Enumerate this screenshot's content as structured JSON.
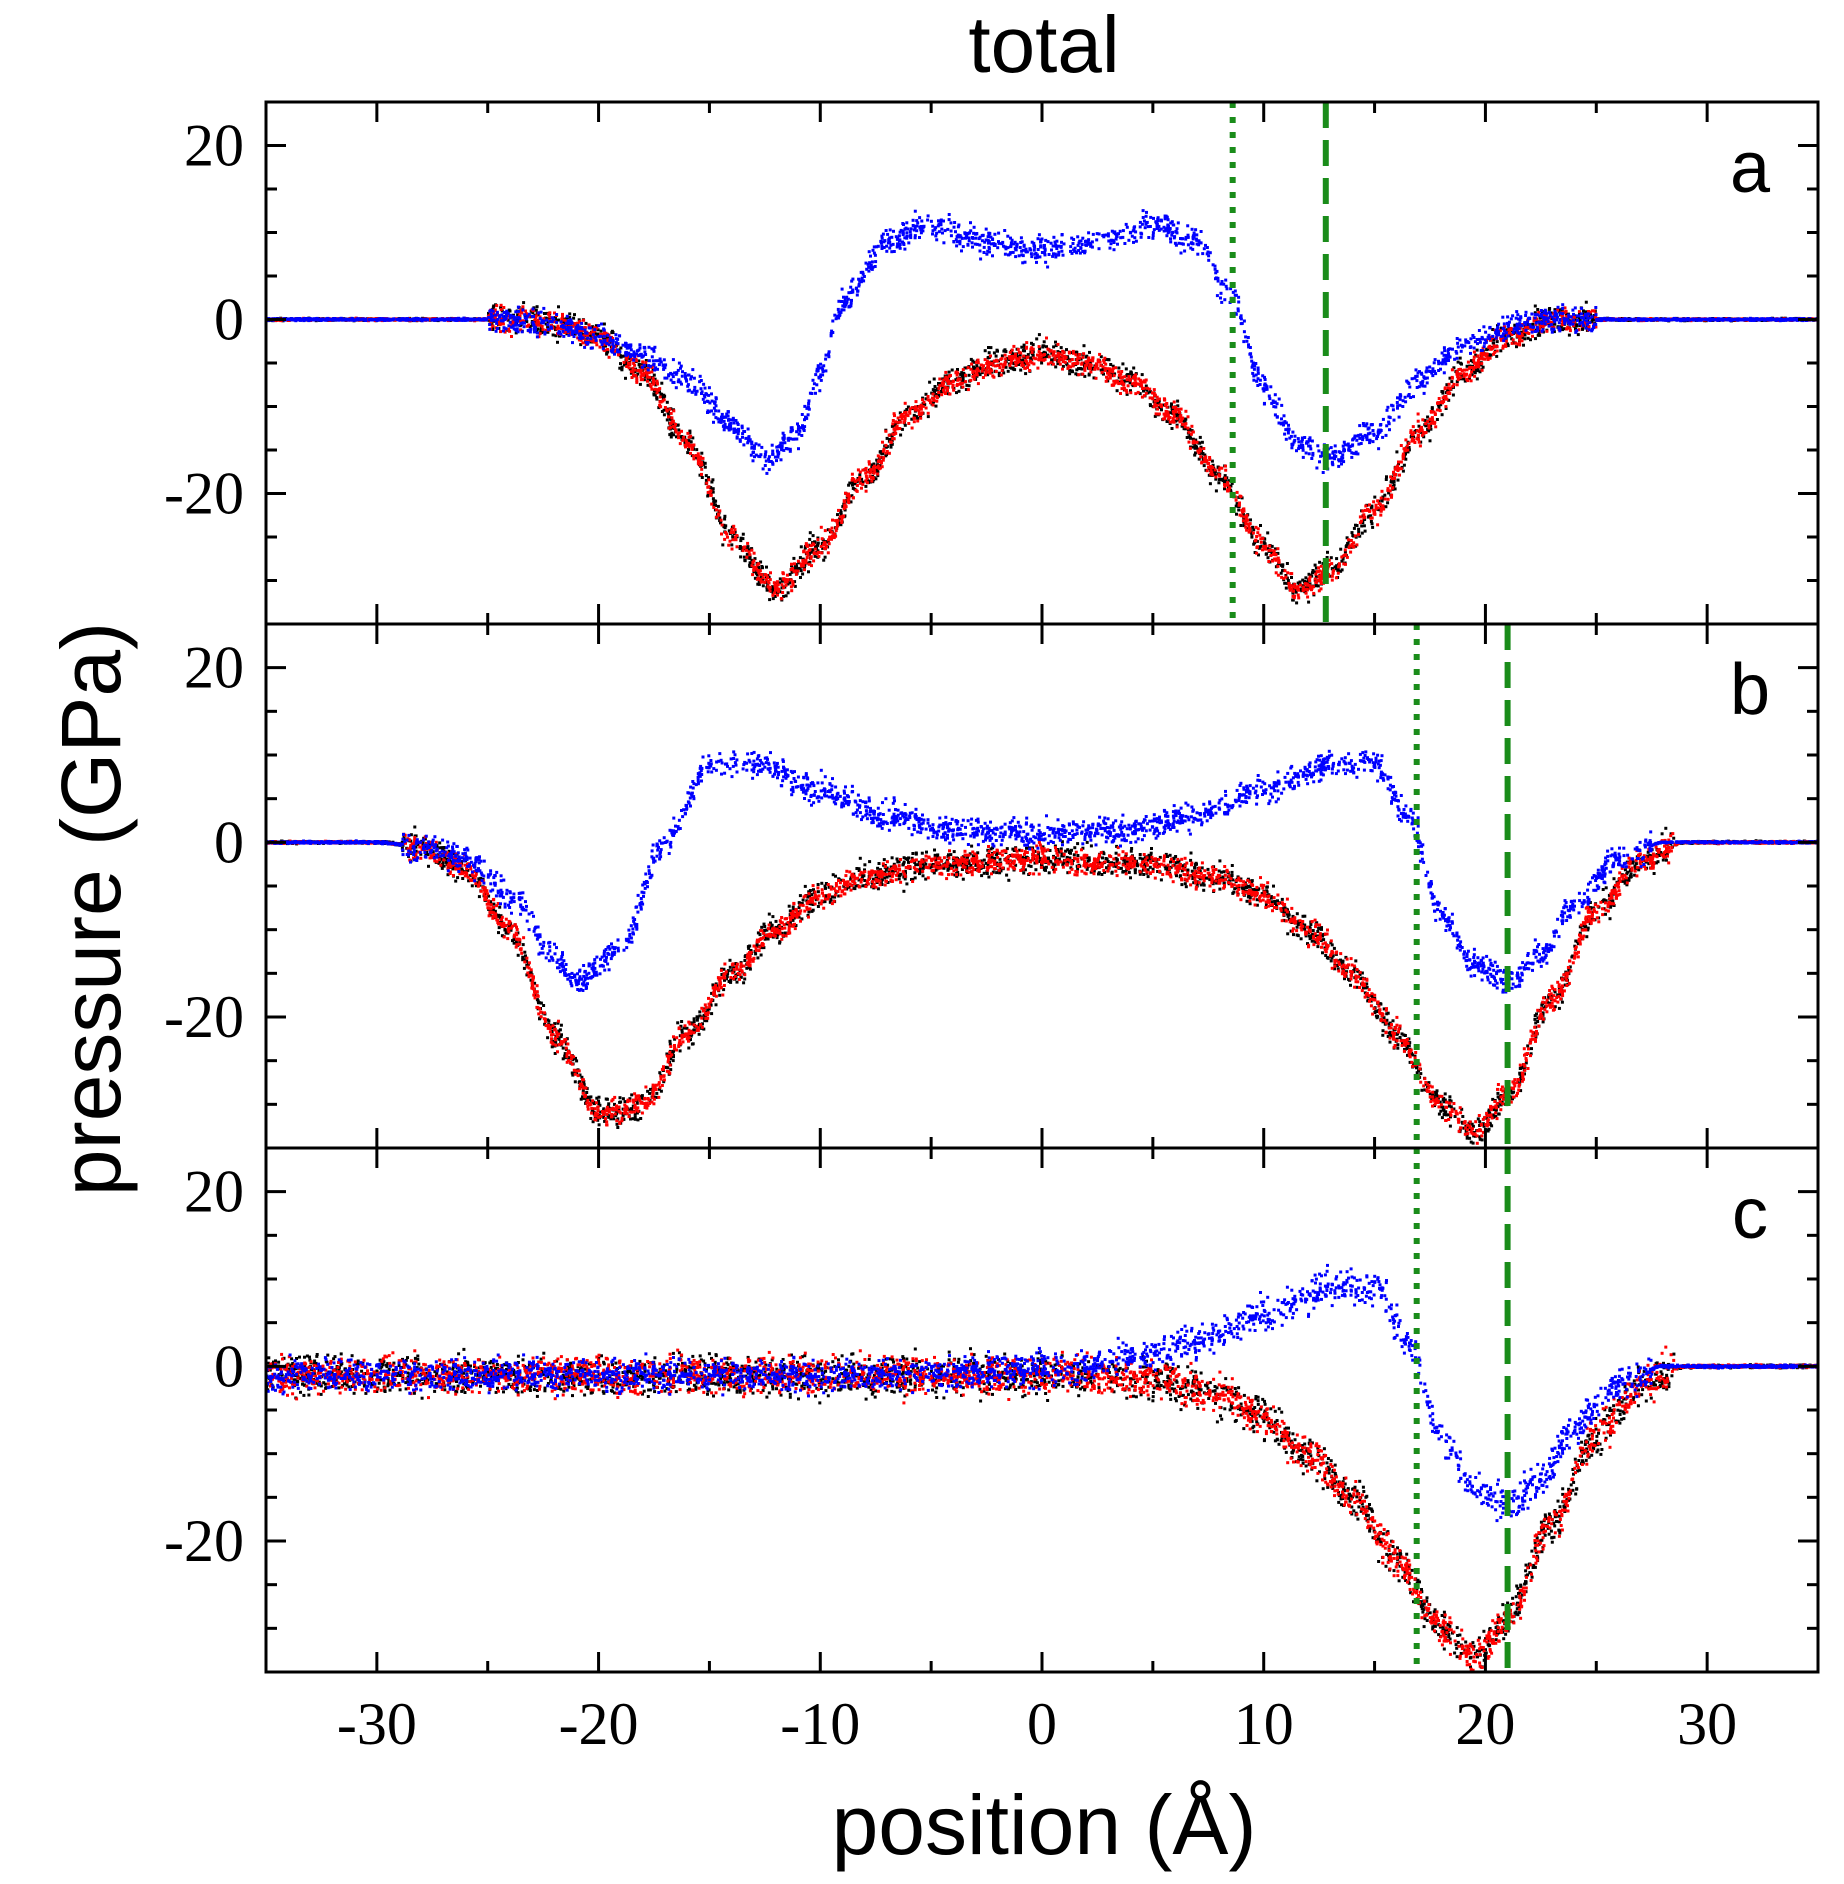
{
  "chart_data": {
    "type": "scatter",
    "title": "total",
    "xlabel": "position (Å)",
    "ylabel": "pressure (GPa)",
    "xlim": [
      -35,
      35
    ],
    "x_ticks": [
      -30,
      -20,
      -10,
      0,
      10,
      20,
      30
    ],
    "x_tick_labels": [
      "-30",
      "-20",
      "-10",
      "0",
      "10",
      "20",
      "30"
    ],
    "ylim": [
      -35,
      25
    ],
    "y_ticks": [
      -20,
      0,
      20
    ],
    "y_tick_labels": [
      "-20",
      "0",
      "20"
    ],
    "colors": {
      "blue": "#0000ff",
      "red": "#ff0000",
      "black": "#000000",
      "guide": "#1a8c1a"
    },
    "panels": [
      {
        "label": "a",
        "vlines": [
          {
            "x": 8.6,
            "style": "dotted"
          },
          {
            "x": 12.8,
            "style": "dashed"
          }
        ],
        "series": [
          {
            "name": "black",
            "color": "#000000",
            "noise": 1.6,
            "x": [
              -35,
              -24,
              -22,
              -20,
              -18,
              -16,
              -14,
              -12,
              -10,
              -8,
              -6,
              -4,
              -2,
              0,
              2,
              4,
              6,
              8,
              10,
              11.5,
              13,
              15,
              17,
              19,
              21,
              23,
              35
            ],
            "y": [
              0,
              0,
              -0.5,
              -2,
              -6,
              -14,
              -25,
              -31,
              -26,
              -18,
              -11,
              -7,
              -5,
              -4,
              -5,
              -7,
              -11,
              -18,
              -26,
              -31,
              -29,
              -22,
              -13,
              -6,
              -2,
              0,
              0
            ]
          },
          {
            "name": "red",
            "color": "#ff0000",
            "noise": 1.4,
            "x": [
              -35,
              -24,
              -22,
              -20,
              -18,
              -16,
              -14,
              -12,
              -10,
              -8,
              -6,
              -4,
              -2,
              0,
              2,
              4,
              6,
              8,
              10,
              11.5,
              13,
              15,
              17,
              19,
              21,
              23,
              35
            ],
            "y": [
              0,
              0,
              -0.5,
              -2,
              -6,
              -14,
              -25,
              -31,
              -26,
              -18,
              -11,
              -7,
              -5,
              -4,
              -5,
              -7,
              -11,
              -18,
              -26,
              -31,
              -29,
              -22,
              -13,
              -6,
              -2,
              0,
              0
            ]
          },
          {
            "name": "blue",
            "color": "#0000ff",
            "noise": 1.5,
            "x": [
              -35,
              -24,
              -22,
              -20,
              -18,
              -16,
              -14,
              -12.5,
              -11,
              -10,
              -9,
              -7,
              -5,
              -3,
              0,
              3,
              5,
              7,
              8.5,
              10,
              11.5,
              13,
              15,
              17,
              19,
              21,
              23,
              35
            ],
            "y": [
              0,
              0,
              -0.5,
              -2,
              -4,
              -7,
              -12,
              -16,
              -13,
              -6,
              2,
              9,
              11,
              9,
              8,
              9,
              11,
              9,
              3,
              -8,
              -14,
              -16,
              -13,
              -7,
              -3,
              -1,
              0,
              0
            ]
          }
        ]
      },
      {
        "label": "b",
        "vlines": [
          {
            "x": 16.9,
            "style": "dotted"
          },
          {
            "x": 21.0,
            "style": "dashed"
          }
        ],
        "series": [
          {
            "name": "black",
            "color": "#000000",
            "noise": 1.6,
            "x": [
              -35,
              -30,
              -28,
              -26,
              -24,
              -22,
              -20,
              -18,
              -16,
              -14,
              -12,
              -10,
              -8,
              -5,
              0,
              5,
              8,
              10,
              12,
              14,
              16,
              18,
              19.5,
              21,
              23,
              25,
              27,
              29,
              35
            ],
            "y": [
              0,
              0,
              -0.5,
              -3,
              -10,
              -22,
              -31,
              -30,
              -22,
              -15,
              -10,
              -6,
              -4,
              -2.5,
              -2,
              -2.5,
              -4,
              -6,
              -10,
              -15,
              -22,
              -30,
              -33,
              -29,
              -18,
              -8,
              -2,
              0,
              0
            ]
          },
          {
            "name": "red",
            "color": "#ff0000",
            "noise": 1.4,
            "x": [
              -35,
              -30,
              -28,
              -26,
              -24,
              -22,
              -20,
              -18,
              -16,
              -14,
              -12,
              -10,
              -8,
              -5,
              0,
              5,
              8,
              10,
              12,
              14,
              16,
              18,
              19.5,
              21,
              23,
              25,
              27,
              29,
              35
            ],
            "y": [
              0,
              0,
              -0.5,
              -3,
              -10,
              -22,
              -31,
              -30,
              -22,
              -15,
              -10,
              -6,
              -4,
              -2.5,
              -2,
              -2.5,
              -4,
              -6,
              -10,
              -15,
              -22,
              -30,
              -33,
              -29,
              -18,
              -8,
              -2,
              0,
              0
            ]
          },
          {
            "name": "blue",
            "color": "#0000ff",
            "noise": 1.5,
            "x": [
              -35,
              -30,
              -28,
              -26,
              -24,
              -22,
              -21,
              -19,
              -17,
              -15,
              -13,
              -10,
              -7,
              -4,
              0,
              4,
              7,
              10,
              13,
              15,
              16.5,
              18,
              19.5,
              21,
              22.5,
              24,
              26,
              28,
              30,
              35
            ],
            "y": [
              0,
              0,
              -0.5,
              -2,
              -6,
              -13,
              -16,
              -12,
              0,
              9,
              9,
              6,
              3,
              1.5,
              1,
              1.5,
              3,
              6,
              9,
              9,
              3,
              -8,
              -14,
              -16,
              -13,
              -7,
              -2,
              0,
              0,
              0
            ]
          }
        ]
      },
      {
        "label": "c",
        "vlines": [
          {
            "x": 16.9,
            "style": "dotted"
          },
          {
            "x": 21.0,
            "style": "dashed"
          }
        ],
        "series": [
          {
            "name": "black",
            "color": "#000000",
            "noise": 2.2,
            "x": [
              -35,
              -20,
              -10,
              0,
              5,
              8,
              10,
              12,
              14,
              16,
              18,
              19.5,
              21,
              23,
              25,
              27,
              29,
              35
            ],
            "y": [
              -1,
              -1,
              -1,
              -1,
              -1.5,
              -3,
              -6,
              -10,
              -15,
              -22,
              -30,
              -33,
              -29,
              -18,
              -8,
              -2,
              0,
              0
            ]
          },
          {
            "name": "red",
            "color": "#ff0000",
            "noise": 2.0,
            "x": [
              -35,
              -20,
              -10,
              0,
              5,
              8,
              10,
              12,
              14,
              16,
              18,
              19.5,
              21,
              23,
              25,
              27,
              29,
              35
            ],
            "y": [
              -1,
              -1,
              -1,
              -1,
              -1.5,
              -3,
              -6,
              -10,
              -15,
              -22,
              -30,
              -33,
              -29,
              -18,
              -8,
              -2,
              0,
              0
            ]
          },
          {
            "name": "blue",
            "color": "#0000ff",
            "noise": 1.8,
            "x": [
              -35,
              -20,
              -10,
              0,
              4,
              7,
              10,
              13,
              15,
              16.5,
              18,
              19.5,
              21,
              22.5,
              24,
              26,
              28,
              30,
              35
            ],
            "y": [
              -1,
              -1,
              -1,
              -0.5,
              1,
              3,
              6,
              9,
              9,
              3,
              -8,
              -14,
              -16,
              -13,
              -7,
              -2,
              0,
              0,
              0
            ]
          }
        ]
      }
    ]
  }
}
